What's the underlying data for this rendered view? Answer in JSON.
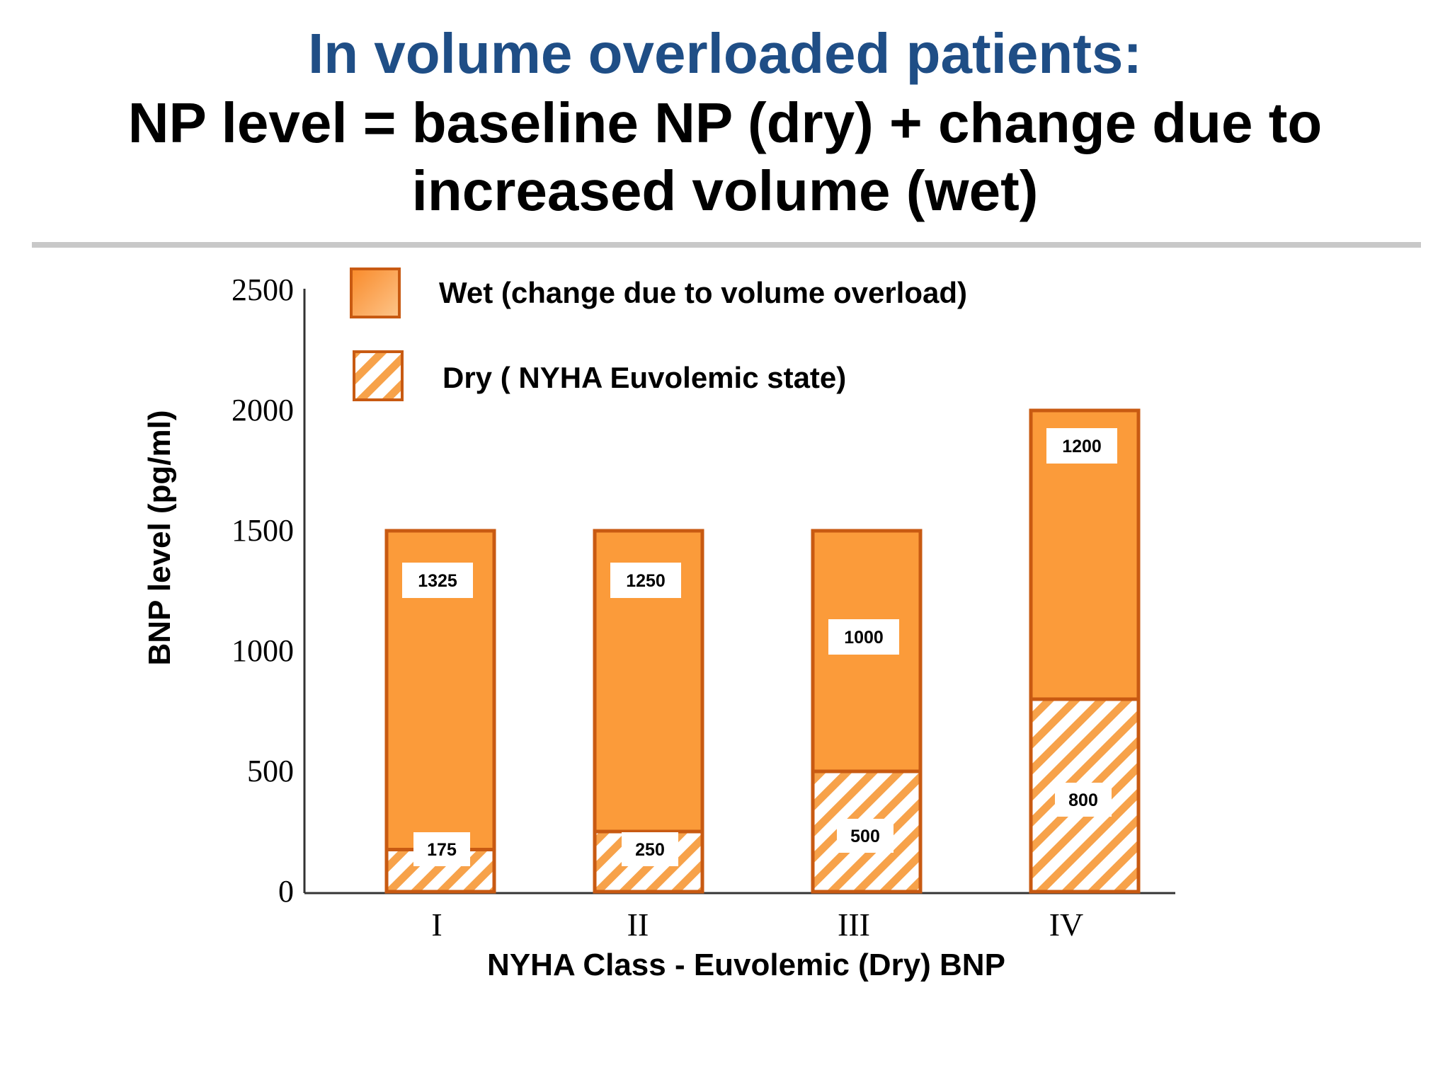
{
  "slide": {
    "title_line1": "In volume overloaded patients:",
    "title_line2": "NP level = baseline NP (dry) + change due to",
    "title_line3": "increased volume (wet)"
  },
  "colors": {
    "title_blue": "#1f4e86",
    "wet_fill": "#fb9b3a",
    "bar_border": "#c85a12",
    "hatch_stripe": "#f7a24a",
    "divider": "#c8c8c8"
  },
  "chart_data": {
    "type": "bar",
    "stacked": true,
    "title": "",
    "xlabel": "NYHA Class - Euvolemic (Dry) BNP",
    "ylabel": "BNP level (pg/ml)",
    "ylim": [
      0,
      2500
    ],
    "yticks": [
      0,
      500,
      1000,
      1500,
      2000,
      2500
    ],
    "categories": [
      "I",
      "II",
      "III",
      "IV"
    ],
    "series": [
      {
        "name": "Dry ( NYHA Euvolemic state)",
        "pattern": "hatch",
        "values": [
          175,
          250,
          500,
          800
        ],
        "labels": [
          "175",
          "250",
          "500",
          "800"
        ]
      },
      {
        "name": "Wet (change due to volume overload)",
        "pattern": "solid",
        "values": [
          1325,
          1250,
          1000,
          1200
        ],
        "labels": [
          "1325",
          "1250",
          "1000",
          "1200"
        ]
      }
    ],
    "legend": {
      "position": "top-left",
      "entries": [
        "Wet (change due to volume overload)",
        "Dry ( NYHA Euvolemic state)"
      ]
    },
    "grid": false
  }
}
